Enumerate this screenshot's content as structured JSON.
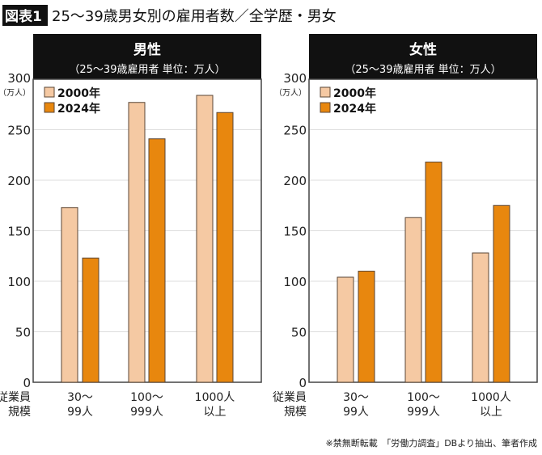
{
  "figure_label": "図表1",
  "title": "25〜39歳男女別の雇用者数／全学歴・男女",
  "source": "※禁無断転載　「労働力調査」DBより抽出、筆者作成",
  "colors": {
    "s2000": "#f5c9a3",
    "s2024": "#e8870e",
    "header": "#111111",
    "grid": "#dddddd",
    "border": "#444444"
  },
  "chart_data": [
    {
      "type": "bar",
      "title": "男性",
      "subtitle": "（25〜39歳雇用者 単位：万人）",
      "ylabel": "（万人）",
      "ylim": [
        0,
        300
      ],
      "yticks": [
        "0",
        "50",
        "100",
        "150",
        "200",
        "250",
        "300"
      ],
      "grid": true,
      "legend": "top-left",
      "xlabel": [
        "従業員",
        "規模"
      ],
      "categories": [
        [
          "30〜",
          "99人"
        ],
        [
          "100〜",
          "999人"
        ],
        [
          "1000人",
          "以上"
        ]
      ],
      "series": [
        {
          "name": "2000年",
          "values": [
            173,
            277,
            284
          ]
        },
        {
          "name": "2024年",
          "values": [
            123,
            241,
            267
          ]
        }
      ]
    },
    {
      "type": "bar",
      "title": "女性",
      "subtitle": "（25〜39歳雇用者 単位：万人）",
      "ylabel": "（万人）",
      "ylim": [
        0,
        300
      ],
      "yticks": [
        "0",
        "50",
        "100",
        "150",
        "200",
        "250",
        "300"
      ],
      "grid": true,
      "legend": "top-left",
      "xlabel": [
        "従業員",
        "規模"
      ],
      "categories": [
        [
          "30〜",
          "99人"
        ],
        [
          "100〜",
          "999人"
        ],
        [
          "1000人",
          "以上"
        ]
      ],
      "series": [
        {
          "name": "2000年",
          "values": [
            104,
            163,
            128
          ]
        },
        {
          "name": "2024年",
          "values": [
            110,
            218,
            175
          ]
        }
      ]
    }
  ]
}
